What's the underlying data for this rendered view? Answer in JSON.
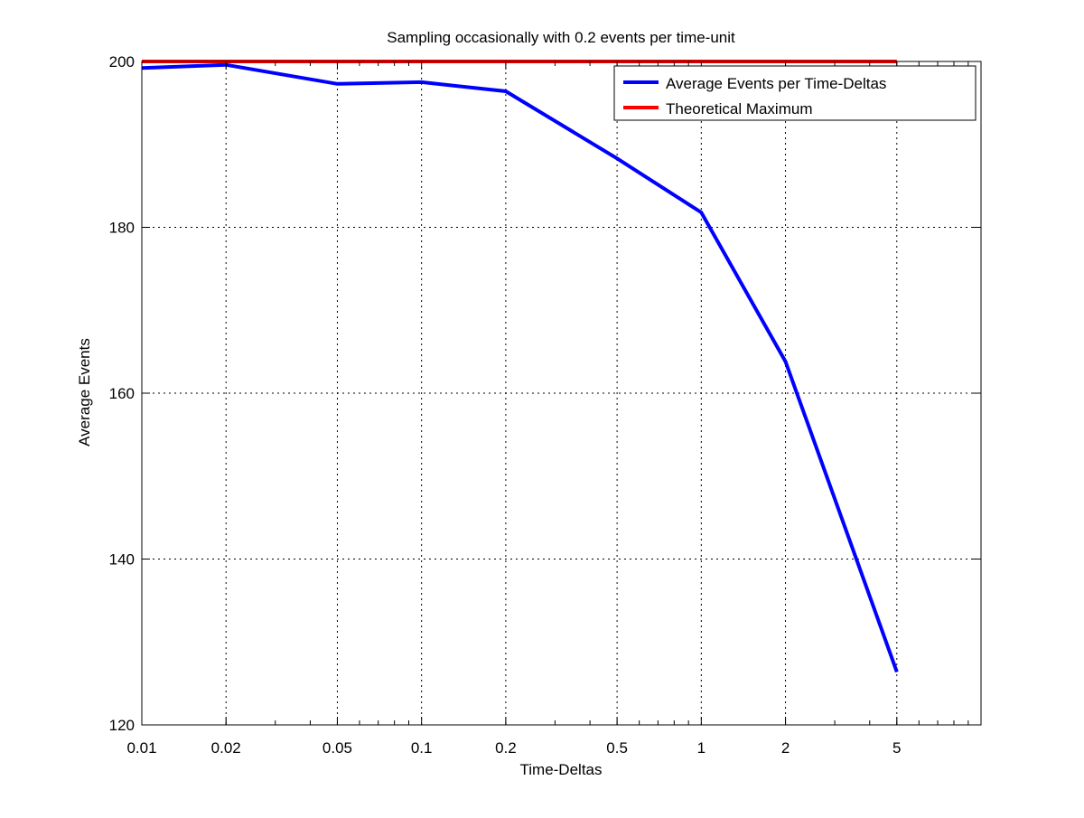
{
  "chart_data": {
    "type": "line",
    "title": "Sampling occasionally with 0.2 events per time-unit",
    "xlabel": "Time-Deltas",
    "ylabel": "Average Events",
    "x_scale": "log",
    "xlim": [
      0.01,
      10
    ],
    "ylim": [
      120,
      200
    ],
    "x_ticks": [
      0.01,
      0.02,
      0.05,
      0.1,
      0.2,
      0.5,
      1,
      2,
      5
    ],
    "x_tick_labels": [
      "0.01",
      "0.02",
      "0.05",
      "0.1",
      "0.2",
      "0.5",
      "1",
      "2",
      "5"
    ],
    "y_ticks": [
      120,
      140,
      160,
      180,
      200
    ],
    "y_tick_labels": [
      "120",
      "140",
      "160",
      "180",
      "200"
    ],
    "grid": true,
    "legend_position": "top-right",
    "series": [
      {
        "name": "Average Events per Time-Deltas",
        "color": "#0000ff",
        "x": [
          0.01,
          0.02,
          0.05,
          0.1,
          0.2,
          0.5,
          1,
          2,
          5
        ],
        "y": [
          199.2,
          199.6,
          197.3,
          197.5,
          196.4,
          188.3,
          181.8,
          163.8,
          126.4
        ]
      },
      {
        "name": "Theoretical Maximum",
        "color": "#ff0000",
        "x": [
          0.01,
          5
        ],
        "y": [
          200,
          200
        ]
      }
    ]
  }
}
